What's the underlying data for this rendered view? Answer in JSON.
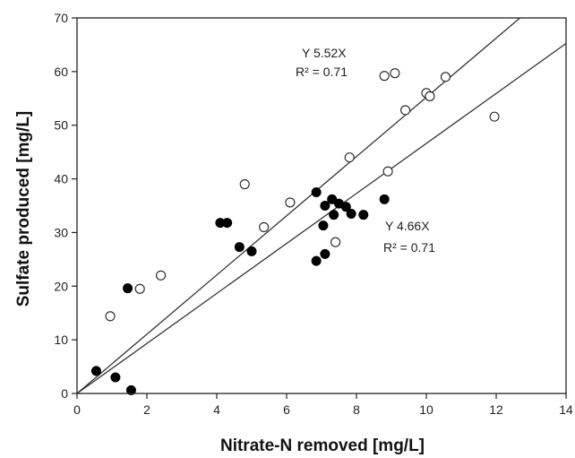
{
  "chart_data": {
    "type": "scatter",
    "title": "",
    "xlabel": "Nitrate-N removed [mg/L]",
    "ylabel": "Sulfate produced [mg/L]",
    "xlim": [
      0,
      14
    ],
    "ylim": [
      0,
      70
    ],
    "xticks": [
      0,
      2,
      4,
      6,
      8,
      10,
      12,
      14
    ],
    "yticks": [
      0,
      10,
      20,
      30,
      40,
      50,
      60,
      70
    ],
    "grid": false,
    "series": [
      {
        "marker": "open-circle",
        "points": [
          [
            0.95,
            14.4
          ],
          [
            1.8,
            19.5
          ],
          [
            2.4,
            22
          ],
          [
            4.8,
            39
          ],
          [
            5.35,
            31
          ],
          [
            6.1,
            35.6
          ],
          [
            7.4,
            28.2
          ],
          [
            7.8,
            44
          ],
          [
            8.8,
            59.2
          ],
          [
            9.1,
            59.7
          ],
          [
            9.4,
            52.8
          ],
          [
            8.9,
            41.4
          ],
          [
            10.0,
            56
          ],
          [
            10.1,
            55.4
          ],
          [
            10.55,
            59
          ],
          [
            11.95,
            51.6
          ]
        ],
        "fit": {
          "slope": 5.52,
          "label_eq": "Y   5.52X",
          "label_r2": "R² = 0.71"
        }
      },
      {
        "marker": "filled-circle",
        "points": [
          [
            0.55,
            4.2
          ],
          [
            1.1,
            3
          ],
          [
            1.55,
            0.6
          ],
          [
            1.45,
            19.6
          ],
          [
            4.1,
            31.8
          ],
          [
            4.3,
            31.8
          ],
          [
            4.65,
            27.3
          ],
          [
            5.0,
            26.5
          ],
          [
            6.85,
            37.5
          ],
          [
            6.85,
            24.7
          ],
          [
            7.1,
            35
          ],
          [
            7.05,
            31.3
          ],
          [
            7.1,
            26
          ],
          [
            7.3,
            36.2
          ],
          [
            7.35,
            33.3
          ],
          [
            7.5,
            35.4
          ],
          [
            7.7,
            34.8
          ],
          [
            7.85,
            33.5
          ],
          [
            8.2,
            33.3
          ],
          [
            8.8,
            36.2
          ]
        ],
        "fit": {
          "slope": 4.66,
          "label_eq": "Y   4.66X",
          "label_r2": "R² = 0.71"
        }
      }
    ]
  }
}
